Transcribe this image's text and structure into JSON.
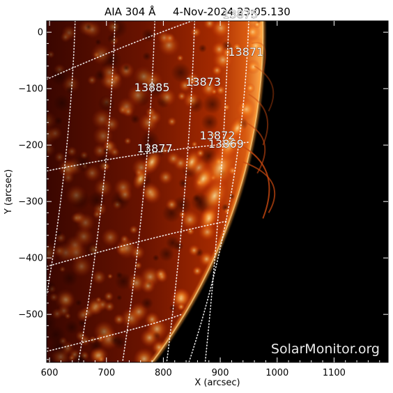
{
  "title": {
    "instrument": "AIA 304 Å",
    "date_time": "4-Nov-2024 23:05.130"
  },
  "axes": {
    "xlabel": "X (arcsec)",
    "ylabel": "Y (arcsec)",
    "x_range": [
      595,
      1195
    ],
    "y_range": [
      -585,
      20
    ],
    "x_ticks": [
      "600",
      "700",
      "800",
      "900",
      "1000",
      "1100"
    ],
    "y_ticks": [
      "0",
      "−100",
      "−200",
      "−300",
      "−400",
      "−500"
    ]
  },
  "active_regions": [
    {
      "number": "13875",
      "x": 935,
      "y": 25
    },
    {
      "number": "13871",
      "x": 945,
      "y": -42
    },
    {
      "number": "13873",
      "x": 870,
      "y": -95
    },
    {
      "number": "13885",
      "x": 780,
      "y": -105
    },
    {
      "number": "13872",
      "x": 895,
      "y": -190
    },
    {
      "number": "13869",
      "x": 910,
      "y": -205
    },
    {
      "number": "13877",
      "x": 785,
      "y": -213
    }
  ],
  "credit": "SolarMonitor.org",
  "colors": {
    "background": "#000000",
    "disk_bright": "#fff2c0",
    "disk_mid": "#e06010",
    "disk_dark": "#5a0c00"
  }
}
